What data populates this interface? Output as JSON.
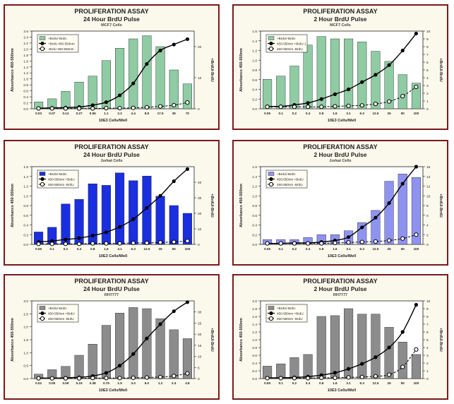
{
  "chart_data": [
    {
      "type": "bar",
      "title": "PROLIFERATION ASSAY",
      "subtitle": "24 Hour BrdU Pulse",
      "cell_line": "MCF7 Cells",
      "xlabel": "10E3 Cells/Well",
      "ylabel": "Absorbance 450-550nm",
      "y2label": "+BrdU/-BrdU",
      "categories": [
        "0.03",
        "0.07",
        "0.14",
        "0.27",
        "0.55",
        "1.1",
        "2.2",
        "4.4",
        "8.8",
        "17.5",
        "35",
        "70"
      ],
      "ylim": [
        0,
        2.6
      ],
      "yticks": [
        "0.0",
        "0.2",
        "0.4",
        "0.6",
        "0.8",
        "1.0",
        "1.2",
        "1.4",
        "1.6",
        "1.8",
        "2.0",
        "2.2",
        "2.4",
        "2.6"
      ],
      "y2lim": [
        0,
        25
      ],
      "y2ticks": [
        "0",
        "10",
        "20"
      ],
      "bar_color": "#8fcba3",
      "legend": [
        "+BrdU/-BrdU",
        "+BrdU 450-550nm",
        "-BrdU 450-550nm"
      ],
      "series": [
        {
          "name": "+BrdU/-BrdU",
          "axis": "right",
          "values": [
            2.2,
            3.2,
            5.6,
            8.6,
            10.5,
            15.5,
            19.5,
            22.5,
            23.5,
            20.0,
            12.5,
            8.0
          ]
        },
        {
          "name": "+BrdU 450-550nm",
          "axis": "left",
          "values": [
            0.02,
            0.03,
            0.04,
            0.06,
            0.12,
            0.22,
            0.45,
            0.85,
            1.5,
            1.95,
            2.15,
            2.33
          ]
        },
        {
          "name": "-BrdU 450-550nm",
          "axis": "left",
          "values": [
            0.01,
            0.01,
            0.01,
            0.01,
            0.01,
            0.02,
            0.02,
            0.03,
            0.05,
            0.08,
            0.12,
            0.21
          ]
        }
      ]
    },
    {
      "type": "bar",
      "title": "PROLIFERATION ASSAY",
      "subtitle": "2 Hour BrdU Pulse",
      "cell_line": "MCF7 Cells",
      "xlabel": "10E3 Cells/Well",
      "ylabel": "Absorbance 450-550nm",
      "y2label": "+BrdU/-BrdU",
      "categories": [
        "0.05",
        "0.1",
        "0.2",
        "0.4",
        "0.8",
        "1.6",
        "3.1",
        "6.3",
        "12.5",
        "25",
        "50",
        "100"
      ],
      "ylim": [
        0,
        1.6
      ],
      "yticks": [
        "0.0",
        "0.2",
        "0.4",
        "0.6",
        "0.8",
        "1.0",
        "1.2",
        "1.4",
        "1.6"
      ],
      "y2lim": [
        0,
        10
      ],
      "y2ticks": [
        "0",
        "1",
        "2",
        "3",
        "4",
        "5",
        "6",
        "7",
        "8",
        "9",
        "10"
      ],
      "bar_color": "#8fcba3",
      "legend": [
        "+BrdU/-BrdU",
        "450-550nm +BrdU 1",
        "450-550nm -BrdU"
      ],
      "series": [
        {
          "name": "+BrdU/-BrdU",
          "axis": "right",
          "values": [
            3.8,
            4.2,
            5.5,
            8.2,
            9.3,
            9.0,
            9.0,
            8.6,
            7.4,
            6.1,
            4.4,
            3.3
          ]
        },
        {
          "name": "450-550nm +BrdU 1",
          "axis": "left",
          "values": [
            0.05,
            0.05,
            0.08,
            0.12,
            0.2,
            0.3,
            0.4,
            0.55,
            0.7,
            0.9,
            1.2,
            1.55
          ]
        },
        {
          "name": "450-550nm -BrdU",
          "axis": "left",
          "values": [
            0.04,
            0.04,
            0.04,
            0.04,
            0.04,
            0.05,
            0.06,
            0.07,
            0.1,
            0.15,
            0.26,
            0.45
          ]
        }
      ]
    },
    {
      "type": "bar",
      "title": "PROLIFERATION ASSAY",
      "subtitle": "24 Hour BrdU Pulse",
      "cell_line": "Jurkat Cells",
      "xlabel": "10E3 Cells/Well",
      "ylabel": "Absorbance 450-550nm",
      "y2label": "+BrdU/-BrdU",
      "categories": [
        "0.05",
        "0.1",
        "0.2",
        "0.4",
        "0.8",
        "1.6",
        "3.1",
        "6.3",
        "12.5",
        "25",
        "50",
        "100"
      ],
      "ylim": [
        0,
        1.6
      ],
      "yticks": [
        "0.0",
        "0.2",
        "0.4",
        "0.6",
        "0.8",
        "1.0",
        "1.2",
        "1.4",
        "1.6"
      ],
      "y2lim": [
        0,
        50
      ],
      "y2ticks": [
        "0",
        "10",
        "20",
        "30",
        "40"
      ],
      "bar_color": "#1a2fe0",
      "legend": [
        "+BrdU/-BrdU",
        "450-550nm +BrdU",
        "450-550nm -BrdU"
      ],
      "series": [
        {
          "name": "+BrdU/-BrdU",
          "axis": "right",
          "values": [
            8,
            11,
            26,
            29,
            39,
            38,
            46,
            41,
            44,
            31,
            25,
            20
          ]
        },
        {
          "name": "450-550nm +BrdU",
          "axis": "left",
          "values": [
            0.05,
            0.07,
            0.1,
            0.13,
            0.18,
            0.25,
            0.36,
            0.52,
            0.75,
            1.0,
            1.3,
            1.55
          ]
        },
        {
          "name": "450-550nm -BrdU",
          "axis": "left",
          "values": [
            0.01,
            0.01,
            0.01,
            0.01,
            0.02,
            0.02,
            0.02,
            0.03,
            0.03,
            0.04,
            0.05,
            0.07
          ]
        }
      ]
    },
    {
      "type": "bar",
      "title": "PROLIFERATION ASSAY",
      "subtitle": "2 Hour BrdU Pulse",
      "cell_line": "Jurkat Cells",
      "xlabel": "10E3 Cells/Well",
      "ylabel": "Absorbance 450-550nm",
      "y2label": "+BrdU/-BrdU",
      "categories": [
        "0.05",
        "0.1",
        "0.2",
        "0.4",
        "0.8",
        "1.6",
        "3.1",
        "6.3",
        "12.5",
        "25",
        "50",
        "100"
      ],
      "ylim": [
        0,
        1.6
      ],
      "yticks": [
        "0.0",
        "0.2",
        "0.4",
        "0.6",
        "0.8",
        "1.0",
        "1.2",
        "1.4",
        "1.6"
      ],
      "y2lim": [
        0,
        16
      ],
      "y2ticks": [
        "0",
        "2",
        "4",
        "6",
        "8",
        "10",
        "12",
        "14",
        "16"
      ],
      "bar_color": "#8f93f0",
      "legend": [
        "+BrdU/-BrdU",
        "450-550nm +BrdU",
        "450-550nm -BrdU"
      ],
      "series": [
        {
          "name": "+BrdU/-BrdU",
          "axis": "right",
          "values": [
            1.0,
            1.0,
            1.0,
            1.4,
            2.0,
            2.0,
            2.8,
            4.5,
            7.0,
            13.0,
            14.5,
            13.8
          ]
        },
        {
          "name": "450-550nm +BrdU",
          "axis": "left",
          "values": [
            0.02,
            0.02,
            0.03,
            0.03,
            0.05,
            0.08,
            0.15,
            0.35,
            0.55,
            0.85,
            1.25,
            1.6
          ]
        },
        {
          "name": "450-550nm -BrdU",
          "axis": "left",
          "values": [
            0.02,
            0.02,
            0.02,
            0.02,
            0.02,
            0.03,
            0.04,
            0.05,
            0.06,
            0.08,
            0.12,
            0.2
          ]
        }
      ]
    },
    {
      "type": "bar",
      "title": "PROLIFERATION ASSAY",
      "subtitle": "24 Hour BrdU Pulse",
      "cell_line": "RH7777",
      "xlabel": "10E3 Cells/Well",
      "ylabel": "Absorbance 450-550nm",
      "y2label": "+BrdU/-BrdU",
      "categories": [
        "0.02",
        "0.05",
        "0.09",
        "0.19",
        "0.38",
        "0.75",
        "1.5",
        "3.0",
        "6.0",
        "1.2",
        "2.4",
        "4.8"
      ],
      "ylim": [
        0,
        3.0
      ],
      "yticks": [
        "0.0",
        "0.5",
        "1.0",
        "1.5",
        "2.0",
        "2.5",
        "3.0"
      ],
      "y2lim": [
        0,
        35
      ],
      "y2ticks": [
        "0",
        "5",
        "10",
        "15",
        "20",
        "25",
        "30"
      ],
      "bar_color": "#8c8c8c",
      "legend": [
        "+BrdU/-BrdU",
        "450-550nm +BrdU",
        "450-550nm -BrdU"
      ],
      "series": [
        {
          "name": "+BrdU/-BrdU",
          "axis": "right",
          "values": [
            2.0,
            4.0,
            5.5,
            10.5,
            15.5,
            24.0,
            29.5,
            32.0,
            31.5,
            27.0,
            22.0,
            18.0
          ]
        },
        {
          "name": "450-550nm +BrdU",
          "axis": "left",
          "values": [
            0.02,
            0.02,
            0.03,
            0.05,
            0.1,
            0.22,
            0.5,
            0.95,
            1.55,
            2.1,
            2.6,
            2.95
          ]
        },
        {
          "name": "450-550nm -BrdU",
          "axis": "left",
          "values": [
            0.01,
            0.01,
            0.01,
            0.01,
            0.02,
            0.02,
            0.02,
            0.03,
            0.04,
            0.06,
            0.1,
            0.2
          ]
        }
      ]
    },
    {
      "type": "bar",
      "title": "PROLIFERATION ASSAY",
      "subtitle": "2 Hour BrdU Pulse",
      "cell_line": "RH7777",
      "xlabel": "10E3 Cells/Well",
      "ylabel": "Absorbance 450-550nm",
      "y2label": "+BrdU/-BrdU",
      "categories": [
        "0.05",
        "0.1",
        "0.2",
        "0.4",
        "0.8",
        "1.6",
        "3.1",
        "6.3",
        "12.5",
        "25",
        "50",
        "100"
      ],
      "ylim": [
        0,
        2.0
      ],
      "yticks": [
        "0.0",
        "0.2",
        "0.4",
        "0.6",
        "0.8",
        "1.0",
        "1.2",
        "1.4",
        "1.6",
        "1.8",
        "2.0"
      ],
      "y2lim": [
        0,
        10
      ],
      "y2ticks": [
        "0",
        "1",
        "2",
        "3",
        "4",
        "5",
        "6",
        "7",
        "8",
        "9",
        "10"
      ],
      "bar_color": "#8c8c8c",
      "legend": [
        "+BrdU/-BrdU",
        "450-550nm +BrdU",
        "450-550nm -BrdU"
      ],
      "series": [
        {
          "name": "+BrdU/-BrdU",
          "axis": "right",
          "values": [
            1.6,
            1.9,
            2.7,
            3.1,
            8.0,
            8.1,
            9.0,
            8.3,
            8.3,
            6.6,
            4.7,
            3.1
          ]
        },
        {
          "name": "450-550nm +BrdU",
          "axis": "left",
          "values": [
            0.02,
            0.02,
            0.03,
            0.05,
            0.09,
            0.15,
            0.25,
            0.38,
            0.55,
            0.8,
            1.2,
            1.9
          ]
        },
        {
          "name": "450-550nm -BrdU",
          "axis": "left",
          "values": [
            0.01,
            0.01,
            0.01,
            0.01,
            0.02,
            0.02,
            0.03,
            0.04,
            0.06,
            0.1,
            0.3,
            0.75
          ]
        }
      ]
    }
  ]
}
